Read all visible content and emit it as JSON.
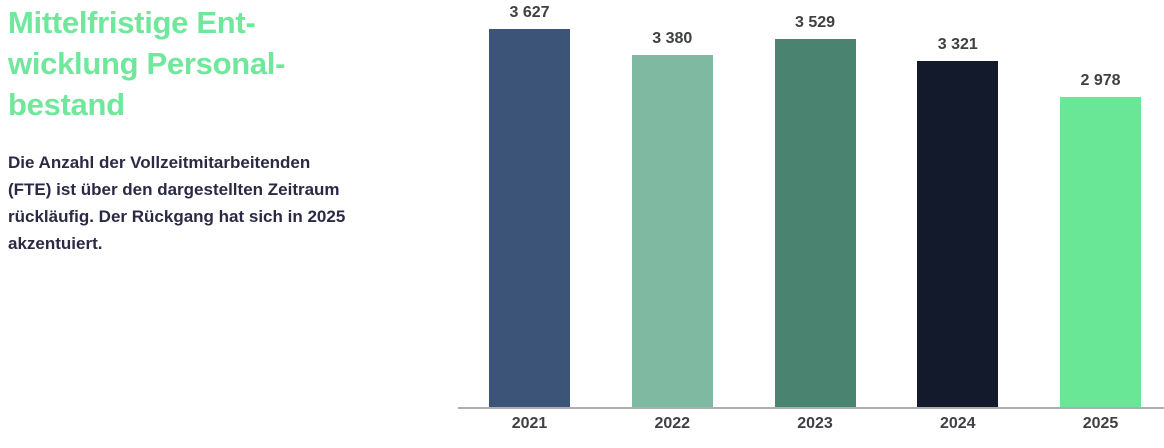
{
  "header": {
    "title_lines": [
      "Mittelfristige Ent-",
      "wicklung Personal-",
      "bestand"
    ],
    "description_lines": [
      "Die Anzahl der Vollzeitmitarbeitenden",
      "(FTE) ist über den dargestellten Zeitraum",
      "rückläufig. Der Rückgang hat sich in 2025",
      "akzentuiert."
    ]
  },
  "colors": {
    "title_green": "#6fe89c",
    "body_text": "#2b2a45",
    "label_gray": "#3f4043",
    "axis_line": "#aeaeae"
  },
  "chart_data": {
    "type": "bar",
    "title": "Mittelfristige Entwicklung Personalbestand",
    "categories": [
      "2021",
      "2022",
      "2023",
      "2024",
      "2025"
    ],
    "values": [
      3627,
      3380,
      3529,
      3321,
      2978
    ],
    "value_labels": [
      "3 627",
      "3 380",
      "3 529",
      "3 321",
      "2 978"
    ],
    "bar_colors": [
      "#3c5478",
      "#80b9a1",
      "#4a8370",
      "#131a2c",
      "#69e797"
    ],
    "xlabel": "",
    "ylabel": "",
    "ylim": [
      0,
      3800
    ],
    "grid": false,
    "legend": false,
    "value_labels_shown": true
  }
}
